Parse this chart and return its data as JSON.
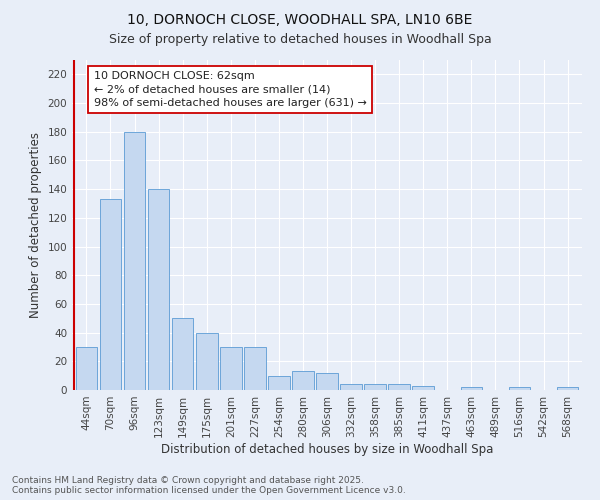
{
  "title1": "10, DORNOCH CLOSE, WOODHALL SPA, LN10 6BE",
  "title2": "Size of property relative to detached houses in Woodhall Spa",
  "xlabel": "Distribution of detached houses by size in Woodhall Spa",
  "ylabel": "Number of detached properties",
  "categories": [
    "44sqm",
    "70sqm",
    "96sqm",
    "123sqm",
    "149sqm",
    "175sqm",
    "201sqm",
    "227sqm",
    "254sqm",
    "280sqm",
    "306sqm",
    "332sqm",
    "358sqm",
    "385sqm",
    "411sqm",
    "437sqm",
    "463sqm",
    "489sqm",
    "516sqm",
    "542sqm",
    "568sqm"
  ],
  "values": [
    30,
    133,
    180,
    140,
    50,
    40,
    30,
    30,
    10,
    13,
    12,
    4,
    4,
    4,
    3,
    0,
    2,
    0,
    2,
    0,
    2
  ],
  "bar_color": "#c5d8f0",
  "bar_edge_color": "#5b9bd5",
  "vline_color": "#cc0000",
  "annotation_text": "10 DORNOCH CLOSE: 62sqm\n← 2% of detached houses are smaller (14)\n98% of semi-detached houses are larger (631) →",
  "annotation_box_color": "#ffffff",
  "annotation_box_edge": "#cc0000",
  "ylim": [
    0,
    230
  ],
  "yticks": [
    0,
    20,
    40,
    60,
    80,
    100,
    120,
    140,
    160,
    180,
    200,
    220
  ],
  "bg_color": "#e8eef8",
  "grid_color": "#ffffff",
  "footer1": "Contains HM Land Registry data © Crown copyright and database right 2025.",
  "footer2": "Contains public sector information licensed under the Open Government Licence v3.0.",
  "title_fontsize": 10,
  "subtitle_fontsize": 9,
  "axis_label_fontsize": 8.5,
  "tick_fontsize": 7.5,
  "annotation_fontsize": 8,
  "footer_fontsize": 6.5
}
